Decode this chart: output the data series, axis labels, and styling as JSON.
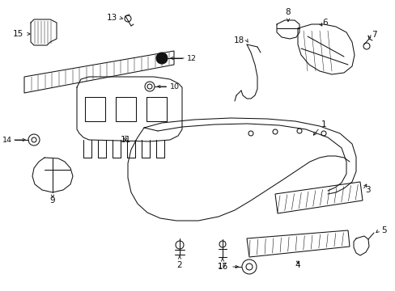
{
  "bg_color": "#ffffff",
  "line_color": "#111111",
  "figsize": [
    4.89,
    3.6
  ],
  "dpi": 100,
  "lw": 0.75,
  "arrow_lw": 0.6,
  "font_size": 7.5,
  "small_font": 6.8
}
